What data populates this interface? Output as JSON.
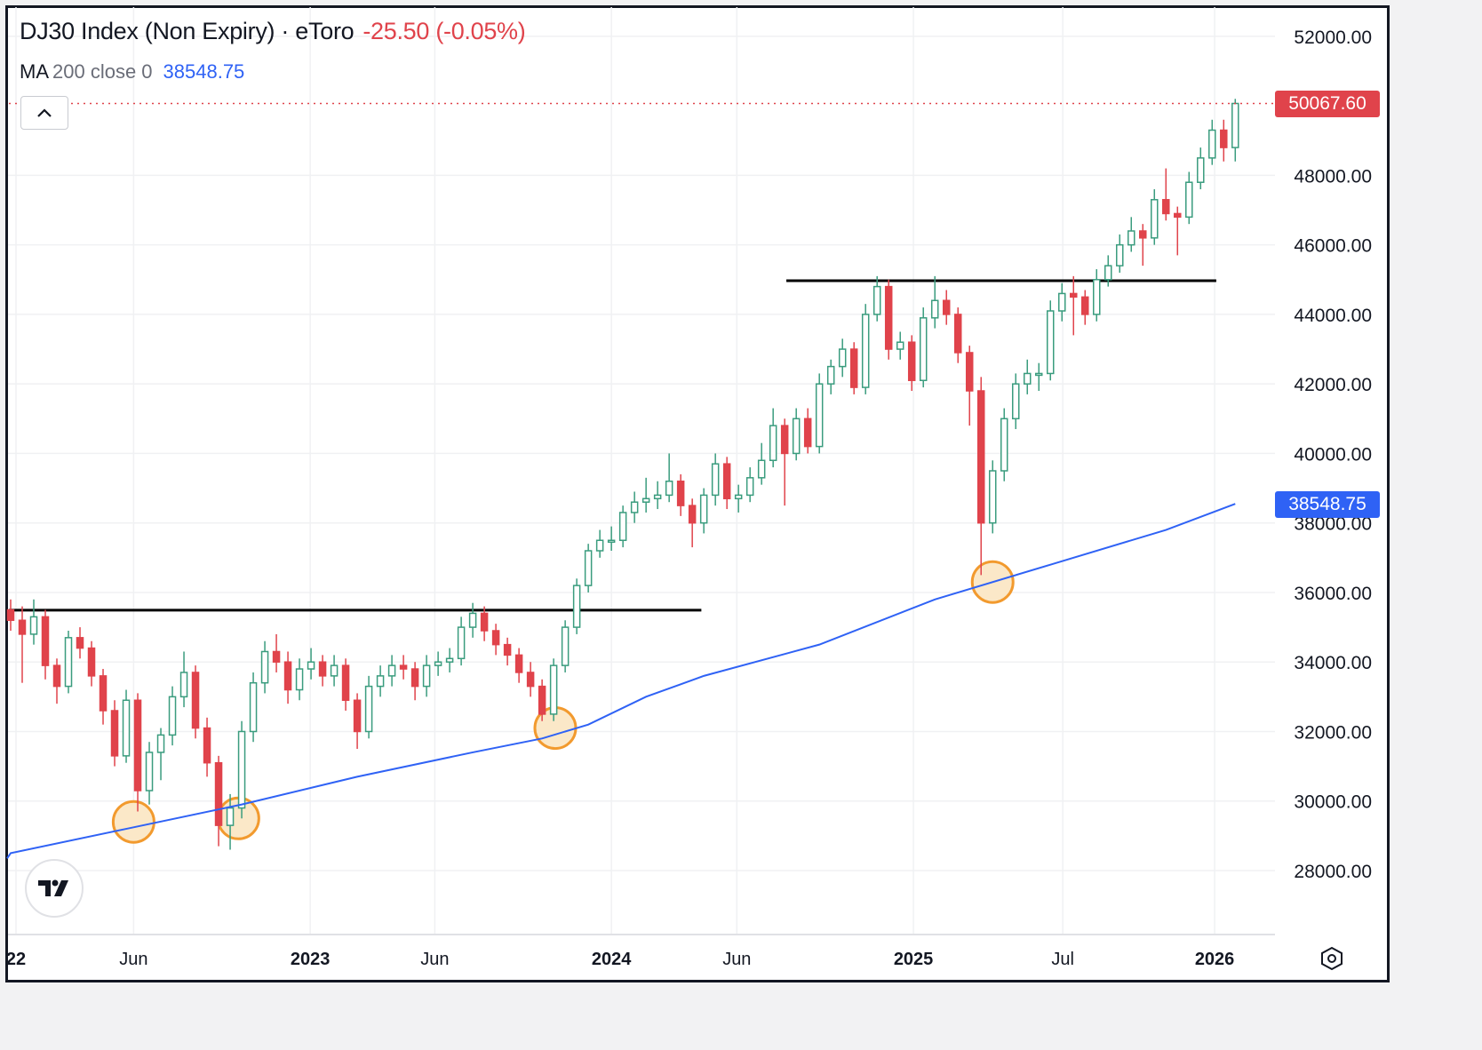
{
  "legend": {
    "symbol": "DJ30 Index (Non Expiry) · eToro",
    "change": "-25.50 (-0.05%)",
    "ma_name": "MA",
    "ma_params": "200 close 0",
    "ma_value": "38548.75"
  },
  "badges": {
    "last_price": "50067.60",
    "ma_price": "38548.75"
  },
  "colors": {
    "up": "#3a9c7e",
    "down": "#e0434b",
    "ma": "#2f62f5",
    "level_line": "#000000",
    "highlight_circle": "#f29a2e",
    "highlight_fill": "#fbe8c8"
  },
  "icons": {
    "collapse": "chevron-up-icon",
    "logo": "tradingview-logo",
    "settings": "gear-hexagon-icon"
  },
  "logo_text": "TV",
  "chart_data": {
    "type": "candlestick",
    "title": "DJ30 Index (Non Expiry) · eToro",
    "start_date": "2022-01-03",
    "interval_days": 14,
    "ylim": [
      26160,
      52840
    ],
    "grid": true,
    "y_ticks": [
      "52000.00",
      "48000.00",
      "46000.00",
      "44000.00",
      "42000.00",
      "40000.00",
      "38000.00",
      "36000.00",
      "34000.00",
      "32000.00",
      "30000.00",
      "28000.00"
    ],
    "x_ticks": [
      {
        "label": "22",
        "date": "2022-01-01",
        "bold": true
      },
      {
        "label": "Jun",
        "date": "2022-06-01",
        "bold": false
      },
      {
        "label": "2023",
        "date": "2023-01-01",
        "bold": true
      },
      {
        "label": "Jun",
        "date": "2023-06-01",
        "bold": false
      },
      {
        "label": "2024",
        "date": "2024-01-01",
        "bold": true
      },
      {
        "label": "Jun",
        "date": "2024-06-01",
        "bold": false
      },
      {
        "label": "2025",
        "date": "2025-01-01",
        "bold": true
      },
      {
        "label": "Jul",
        "date": "2025-07-01",
        "bold": false
      },
      {
        "label": "2026",
        "date": "2026-01-01",
        "bold": true
      }
    ],
    "candles_ohlc": [
      [
        35500,
        35800,
        34900,
        35200
      ],
      [
        35200,
        35600,
        33400,
        34800
      ],
      [
        34800,
        35800,
        34500,
        35300
      ],
      [
        35300,
        35500,
        33500,
        33900
      ],
      [
        33900,
        34100,
        32800,
        33300
      ],
      [
        33300,
        34900,
        33100,
        34700
      ],
      [
        34700,
        35000,
        34100,
        34400
      ],
      [
        34400,
        34600,
        33300,
        33600
      ],
      [
        33600,
        33800,
        32200,
        32600
      ],
      [
        32600,
        32900,
        31000,
        31300
      ],
      [
        31300,
        33200,
        31100,
        32900
      ],
      [
        32900,
        33100,
        29700,
        30300
      ],
      [
        30300,
        31700,
        29900,
        31400
      ],
      [
        31400,
        32100,
        30600,
        31900
      ],
      [
        31900,
        33300,
        31600,
        33000
      ],
      [
        33000,
        34300,
        32700,
        33700
      ],
      [
        33700,
        33900,
        31800,
        32100
      ],
      [
        32100,
        32400,
        30700,
        31100
      ],
      [
        31100,
        31300,
        28700,
        29300
      ],
      [
        29300,
        30200,
        28600,
        29800
      ],
      [
        29800,
        32300,
        29500,
        32000
      ],
      [
        32000,
        33700,
        31700,
        33400
      ],
      [
        33400,
        34600,
        33100,
        34300
      ],
      [
        34300,
        34800,
        33700,
        34000
      ],
      [
        34000,
        34300,
        32800,
        33200
      ],
      [
        33200,
        34100,
        32900,
        33800
      ],
      [
        33800,
        34400,
        33500,
        34000
      ],
      [
        34000,
        34200,
        33300,
        33600
      ],
      [
        33600,
        34200,
        33300,
        33900
      ],
      [
        33900,
        34100,
        32600,
        32900
      ],
      [
        32900,
        33100,
        31500,
        32000
      ],
      [
        32000,
        33600,
        31800,
        33300
      ],
      [
        33300,
        33900,
        33000,
        33600
      ],
      [
        33600,
        34200,
        33300,
        33900
      ],
      [
        33900,
        34200,
        33500,
        33800
      ],
      [
        33800,
        34000,
        32900,
        33300
      ],
      [
        33300,
        34200,
        33000,
        33900
      ],
      [
        33900,
        34300,
        33600,
        34000
      ],
      [
        34000,
        34400,
        33700,
        34100
      ],
      [
        34100,
        35300,
        33900,
        35000
      ],
      [
        35000,
        35700,
        34700,
        35400
      ],
      [
        35400,
        35600,
        34600,
        34900
      ],
      [
        34900,
        35100,
        34200,
        34500
      ],
      [
        34500,
        34700,
        33900,
        34200
      ],
      [
        34200,
        34400,
        33400,
        33700
      ],
      [
        33700,
        34000,
        33000,
        33300
      ],
      [
        33300,
        33500,
        32300,
        32500
      ],
      [
        32500,
        34100,
        32300,
        33900
      ],
      [
        33900,
        35200,
        33700,
        35000
      ],
      [
        35000,
        36400,
        34800,
        36200
      ],
      [
        36200,
        37400,
        36000,
        37200
      ],
      [
        37200,
        37800,
        37000,
        37500
      ],
      [
        37500,
        37900,
        37200,
        37500
      ],
      [
        37500,
        38500,
        37300,
        38300
      ],
      [
        38300,
        38900,
        38000,
        38600
      ],
      [
        38600,
        39300,
        38300,
        38700
      ],
      [
        38700,
        39200,
        38400,
        38800
      ],
      [
        38800,
        40000,
        38600,
        39200
      ],
      [
        39200,
        39400,
        38200,
        38500
      ],
      [
        38500,
        38700,
        37300,
        38000
      ],
      [
        38000,
        39000,
        37700,
        38800
      ],
      [
        38800,
        40000,
        38500,
        39700
      ],
      [
        39700,
        39900,
        38400,
        38700
      ],
      [
        38700,
        39100,
        38300,
        38800
      ],
      [
        38800,
        39600,
        38600,
        39300
      ],
      [
        39300,
        40300,
        39100,
        39800
      ],
      [
        39800,
        41300,
        39600,
        40800
      ],
      [
        40800,
        41000,
        38500,
        40000
      ],
      [
        40000,
        41300,
        39800,
        41000
      ],
      [
        41000,
        41300,
        40000,
        40200
      ],
      [
        40200,
        42300,
        40000,
        42000
      ],
      [
        42000,
        42700,
        41700,
        42500
      ],
      [
        42500,
        43300,
        42200,
        43000
      ],
      [
        43000,
        43200,
        41700,
        41900
      ],
      [
        41900,
        44300,
        41700,
        44000
      ],
      [
        44000,
        45100,
        43800,
        44800
      ],
      [
        44800,
        45000,
        42700,
        43000
      ],
      [
        43000,
        43500,
        42700,
        43200
      ],
      [
        43200,
        43400,
        41800,
        42100
      ],
      [
        42100,
        44200,
        41900,
        43900
      ],
      [
        43900,
        45100,
        43600,
        44400
      ],
      [
        44400,
        44700,
        43700,
        44000
      ],
      [
        44000,
        44200,
        42600,
        42900
      ],
      [
        42900,
        43100,
        40800,
        41800
      ],
      [
        41800,
        42200,
        36500,
        38000
      ],
      [
        38000,
        39800,
        37700,
        39500
      ],
      [
        39500,
        41300,
        39200,
        41000
      ],
      [
        41000,
        42300,
        40700,
        42000
      ],
      [
        42000,
        42700,
        41700,
        42300
      ],
      [
        42300,
        42600,
        41800,
        42300
      ],
      [
        42300,
        44400,
        42100,
        44100
      ],
      [
        44100,
        44900,
        43800,
        44600
      ],
      [
        44600,
        45100,
        43400,
        44500
      ],
      [
        44500,
        44700,
        43700,
        44000
      ],
      [
        44000,
        45300,
        43800,
        45000
      ],
      [
        45000,
        45700,
        44800,
        45400
      ],
      [
        45400,
        46300,
        45200,
        46000
      ],
      [
        46000,
        46800,
        45800,
        46400
      ],
      [
        46400,
        46600,
        45400,
        46200
      ],
      [
        46200,
        47600,
        46000,
        47300
      ],
      [
        47300,
        48200,
        46700,
        46900
      ],
      [
        46900,
        47100,
        45700,
        46800
      ],
      [
        46800,
        48100,
        46600,
        47800
      ],
      [
        47800,
        48800,
        47600,
        48500
      ],
      [
        48500,
        49600,
        48300,
        49300
      ],
      [
        49300,
        49600,
        48400,
        48800
      ],
      [
        48800,
        50200,
        48400,
        50067.6
      ]
    ],
    "ma_series": {
      "name": "MA 200 close 0",
      "points": [
        {
          "date": "2022-01-03",
          "value": 28500
        },
        {
          "date": "2022-05-23",
          "value": 29200
        },
        {
          "date": "2022-10-10",
          "value": 29900
        },
        {
          "date": "2023-02-27",
          "value": 30700
        },
        {
          "date": "2023-07-17",
          "value": 31400
        },
        {
          "date": "2023-10-09",
          "value": 31800
        },
        {
          "date": "2023-12-04",
          "value": 32200
        },
        {
          "date": "2024-02-12",
          "value": 33000
        },
        {
          "date": "2024-04-22",
          "value": 33600
        },
        {
          "date": "2024-09-09",
          "value": 34500
        },
        {
          "date": "2025-01-27",
          "value": 35800
        },
        {
          "date": "2025-06-16",
          "value": 36800
        },
        {
          "date": "2025-11-03",
          "value": 37800
        },
        {
          "date": "2026-01-26",
          "value": 38548.75
        }
      ]
    },
    "last_price": 50067.6,
    "horizontal_levels": [
      {
        "value": 35490,
        "from": "2022-01-01",
        "to": "2024-04-19"
      },
      {
        "value": 44970,
        "from": "2024-07-31",
        "to": "2026-01-03"
      }
    ],
    "highlight_circles": [
      {
        "date": "2022-06-01",
        "value": 29400
      },
      {
        "date": "2022-10-06",
        "value": 29500
      },
      {
        "date": "2023-10-25",
        "value": 32100
      },
      {
        "date": "2025-04-07",
        "value": 36300
      }
    ]
  }
}
